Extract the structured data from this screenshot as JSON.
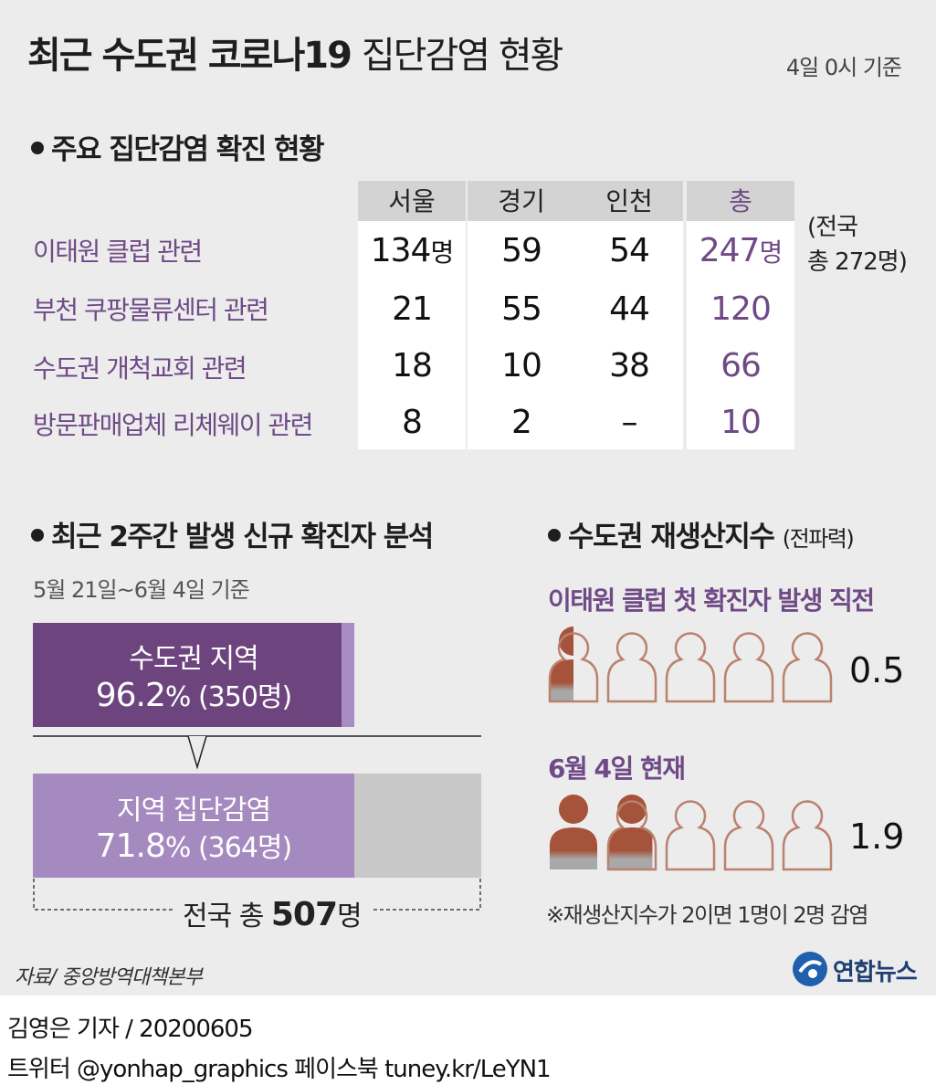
{
  "title_bold": "최근 수도권 코로나19",
  "title_light": "집단감염 현황",
  "basis": "4일 0시 기준",
  "section1": {
    "title": "주요 집단감염 확진 현황"
  },
  "table": {
    "columns": [
      "서울",
      "경기",
      "인천",
      "총"
    ],
    "unit": "명",
    "rows": [
      {
        "label": "이태원 클럽 관련",
        "values": [
          "134",
          "59",
          "54",
          "247"
        ]
      },
      {
        "label": "부천 쿠팡물류센터 관련",
        "values": [
          "21",
          "55",
          "44",
          "120"
        ]
      },
      {
        "label": "수도권 개척교회 관련",
        "values": [
          "18",
          "10",
          "38",
          "66"
        ]
      },
      {
        "label": "방문판매업체 리체웨이 관련",
        "values": [
          "8",
          "2",
          "–",
          "10"
        ]
      }
    ],
    "national_note_line1": "(전국",
    "national_note_line2": "총 272명)"
  },
  "section2": {
    "title": "최근 2주간 발생 신규 확진자 분석",
    "subtitle": "5월 21일~6월 4일 기준",
    "bar1": {
      "label": "수도권 지역",
      "percent": "96.2",
      "pct_sign": "%",
      "count": "(350명)"
    },
    "bar2": {
      "label": "지역 집단감염",
      "percent": "71.8",
      "pct_sign": "%",
      "count": "(364명)"
    },
    "total_prefix": "전국 총 ",
    "total_value": "507",
    "total_unit": "명"
  },
  "section3": {
    "title": "수도권 재생산지수",
    "title_note": "(전파력)",
    "item1": {
      "label": "이태원 클럽 첫 확진자 발생 직전",
      "value": "0.5"
    },
    "item2": {
      "label": "6월 4일 현재",
      "value": "1.9"
    },
    "footnote": "※재생산지수가 2이면 1명이 2명 감염"
  },
  "source": "자료/ 중앙방역대책본부",
  "logo_text": "연합뉴스",
  "credit_line1": "김영은 기자 / 20200605",
  "credit_line2": "트위터 @yonhap_graphics  페이스북 tuney.kr/LeYN1",
  "colors": {
    "purple": "#6f4a86",
    "light_purple": "#a58abf",
    "person_fill": "#a5533a",
    "person_outline": "#b9826f",
    "gray": "#c8c8c8"
  },
  "chart_data": [
    {
      "type": "table",
      "title": "주요 집단감염 확진 현황",
      "columns": [
        "서울",
        "경기",
        "인천",
        "총"
      ],
      "rows": [
        {
          "name": "이태원 클럽 관련",
          "values": [
            134,
            59,
            54,
            247
          ]
        },
        {
          "name": "부천 쿠팡물류센터 관련",
          "values": [
            21,
            55,
            44,
            120
          ]
        },
        {
          "name": "수도권 개척교회 관련",
          "values": [
            18,
            10,
            38,
            66
          ]
        },
        {
          "name": "방문판매업체 리체웨이 관련",
          "values": [
            8,
            2,
            null,
            10
          ]
        }
      ]
    },
    {
      "type": "bar",
      "title": "최근 2주간 발생 신규 확진자 분석",
      "categories": [
        "수도권 지역",
        "지역 집단감염"
      ],
      "values": [
        96.2,
        71.8
      ],
      "counts": [
        350,
        364
      ],
      "total": 507
    },
    {
      "type": "bar",
      "title": "수도권 재생산지수",
      "categories": [
        "이태원 클럽 첫 확진자 발생 직전",
        "6월 4일 현재"
      ],
      "values": [
        0.5,
        1.9
      ],
      "max_icons": 5
    }
  ]
}
